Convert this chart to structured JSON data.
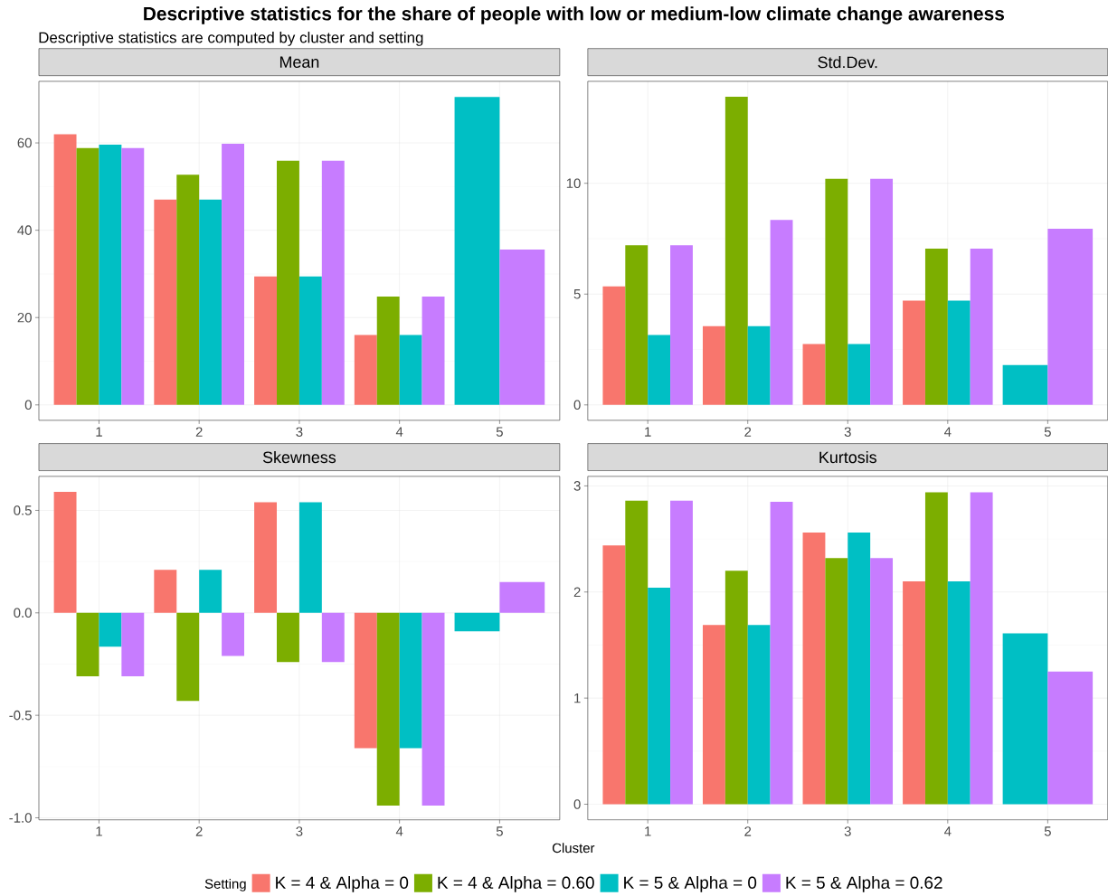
{
  "chart_data": [
    {
      "type": "bar",
      "title": "Mean",
      "annotations": [
        "Descriptive statistics for the share of people with low or medium-low climate change awareness",
        "Descriptive statistics are computed by cluster and setting"
      ],
      "categories": [
        "1",
        "2",
        "3",
        "4",
        "5"
      ],
      "ylim": [
        -3.53,
        74.1
      ],
      "yticks": [
        0,
        20,
        40,
        60
      ],
      "grid": true,
      "legend": "bottom",
      "legend_title": "Setting",
      "xlabel": "Cluster",
      "series": [
        {
          "name": "K = 4  &  Alpha = 0",
          "color": "#f8766d",
          "values": [
            62.0,
            47.0,
            29.4,
            16.0,
            null
          ]
        },
        {
          "name": "K = 4  &  Alpha = 0.60",
          "color": "#7cae00",
          "values": [
            58.8,
            52.7,
            55.9,
            24.8,
            null
          ]
        },
        {
          "name": "K = 5  &  Alpha = 0",
          "color": "#00bfc4",
          "values": [
            59.6,
            47.0,
            29.4,
            16.0,
            70.5
          ]
        },
        {
          "name": "K = 5  &  Alpha = 0.62",
          "color": "#c77cff",
          "values": [
            58.8,
            59.8,
            55.9,
            24.8,
            35.6
          ]
        }
      ]
    },
    {
      "type": "bar",
      "title": "Std.Dev.",
      "categories": [
        "1",
        "2",
        "3",
        "4",
        "5"
      ],
      "ylim": [
        -0.695,
        14.6
      ],
      "yticks": [
        0,
        5,
        10
      ],
      "grid": true,
      "series": [
        {
          "color": "#f8766d",
          "values": [
            5.35,
            3.55,
            2.75,
            4.7,
            null
          ]
        },
        {
          "color": "#7cae00",
          "values": [
            7.2,
            13.9,
            10.2,
            7.05,
            null
          ]
        },
        {
          "color": "#00bfc4",
          "values": [
            3.15,
            3.55,
            2.75,
            4.7,
            1.8
          ]
        },
        {
          "color": "#c77cff",
          "values": [
            7.2,
            8.35,
            10.2,
            7.05,
            7.95
          ]
        }
      ]
    },
    {
      "type": "bar",
      "title": "Skewness",
      "categories": [
        "1",
        "2",
        "3",
        "4",
        "5"
      ],
      "ylim": [
        -1.01,
        0.666
      ],
      "yticks": [
        {
          "value": -1,
          "label": "-1.0"
        },
        {
          "value": -0.5,
          "label": "-0.5"
        },
        {
          "value": 0,
          "label": "0.0"
        },
        0.5
      ],
      "grid": true,
      "series": [
        {
          "color": "#f8766d",
          "values": [
            0.59,
            0.21,
            0.54,
            -0.66,
            null
          ]
        },
        {
          "color": "#7cae00",
          "values": [
            -0.31,
            -0.43,
            -0.24,
            -0.94,
            null
          ]
        },
        {
          "color": "#00bfc4",
          "values": [
            -0.165,
            0.21,
            0.54,
            -0.66,
            -0.09
          ]
        },
        {
          "color": "#c77cff",
          "values": [
            -0.31,
            -0.21,
            -0.24,
            -0.94,
            0.15
          ]
        }
      ]
    },
    {
      "type": "bar",
      "title": "Kurtosis",
      "categories": [
        "1",
        "2",
        "3",
        "4",
        "5"
      ],
      "ylim": [
        -0.147,
        3.09
      ],
      "yticks": [
        0,
        1,
        2,
        3
      ],
      "grid": true,
      "series": [
        {
          "color": "#f8766d",
          "values": [
            2.44,
            1.69,
            2.56,
            2.1,
            null
          ]
        },
        {
          "color": "#7cae00",
          "values": [
            2.86,
            2.2,
            2.32,
            2.94,
            null
          ]
        },
        {
          "color": "#00bfc4",
          "values": [
            2.04,
            1.69,
            2.56,
            2.1,
            1.61
          ]
        },
        {
          "color": "#c77cff",
          "values": [
            2.86,
            2.85,
            2.32,
            2.94,
            1.25
          ]
        }
      ]
    }
  ]
}
